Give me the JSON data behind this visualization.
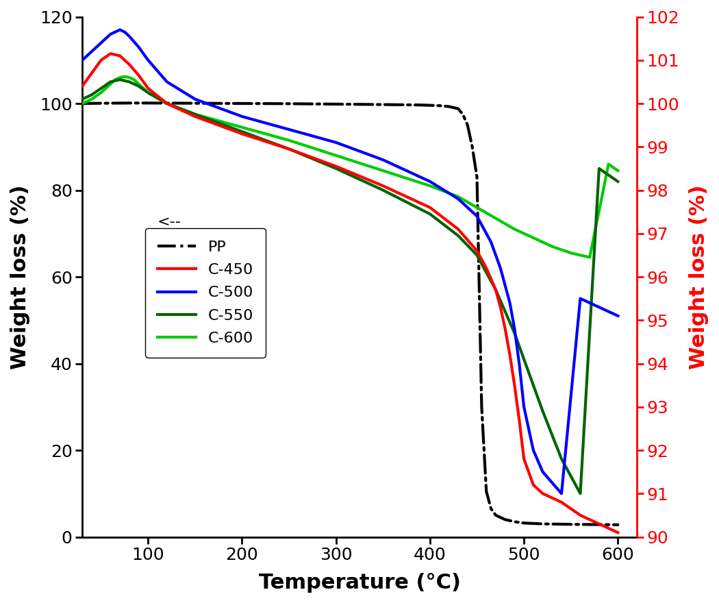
{
  "xlabel": "Temperature (°C)",
  "ylabel_left": "Weight loss (%)",
  "ylabel_right": "Weight loss (%)",
  "xlim": [
    30,
    620
  ],
  "ylim_left": [
    0,
    120
  ],
  "ylim_right": [
    90,
    102
  ],
  "xticks": [
    100,
    200,
    300,
    400,
    500,
    600
  ],
  "yticks_left": [
    0,
    20,
    40,
    60,
    80,
    100,
    120
  ],
  "yticks_right": [
    90,
    91,
    92,
    93,
    94,
    95,
    96,
    97,
    98,
    99,
    100,
    101,
    102
  ],
  "pp_x": [
    30,
    50,
    80,
    100,
    150,
    200,
    250,
    300,
    350,
    390,
    410,
    420,
    430,
    435,
    440,
    445,
    450,
    455,
    460,
    465,
    470,
    480,
    490,
    500,
    520,
    550,
    600
  ],
  "pp_y": [
    100.0,
    100.05,
    100.1,
    100.1,
    100.05,
    100.0,
    99.95,
    99.85,
    99.75,
    99.65,
    99.5,
    99.3,
    98.8,
    97.5,
    95.0,
    90.0,
    83.0,
    30.0,
    10.5,
    6.5,
    5.0,
    4.0,
    3.5,
    3.2,
    3.0,
    2.9,
    2.8
  ],
  "c450_x": [
    30,
    40,
    50,
    60,
    70,
    80,
    90,
    100,
    120,
    150,
    200,
    250,
    300,
    350,
    400,
    430,
    450,
    460,
    470,
    475,
    480,
    485,
    490,
    495,
    500,
    510,
    520,
    540,
    560,
    580,
    600
  ],
  "c450_y": [
    100.4,
    100.7,
    101.0,
    101.15,
    101.1,
    100.9,
    100.65,
    100.35,
    100.0,
    99.7,
    99.3,
    98.95,
    98.55,
    98.1,
    97.6,
    97.1,
    96.6,
    96.2,
    95.7,
    95.3,
    94.8,
    94.2,
    93.5,
    92.7,
    91.8,
    91.2,
    91.0,
    90.8,
    90.5,
    90.3,
    90.1
  ],
  "c500_x": [
    30,
    40,
    50,
    55,
    60,
    65,
    70,
    75,
    80,
    90,
    100,
    120,
    150,
    200,
    250,
    300,
    350,
    400,
    430,
    450,
    460,
    465,
    470,
    475,
    480,
    485,
    490,
    495,
    500,
    510,
    520,
    540,
    560,
    580,
    600
  ],
  "c500_y": [
    101.0,
    101.2,
    101.4,
    101.5,
    101.6,
    101.65,
    101.7,
    101.65,
    101.55,
    101.3,
    101.0,
    100.5,
    100.1,
    99.7,
    99.4,
    99.1,
    98.7,
    98.2,
    97.8,
    97.4,
    97.0,
    96.8,
    96.5,
    96.2,
    95.8,
    95.4,
    94.8,
    94.0,
    93.0,
    92.0,
    91.5,
    91.0,
    95.5,
    95.3,
    95.1
  ],
  "c550_x": [
    30,
    40,
    50,
    60,
    70,
    80,
    90,
    100,
    120,
    150,
    200,
    250,
    300,
    350,
    400,
    430,
    450,
    460,
    470,
    480,
    490,
    500,
    510,
    520,
    540,
    560,
    580,
    600
  ],
  "c550_y": [
    100.1,
    100.2,
    100.35,
    100.5,
    100.55,
    100.5,
    100.4,
    100.25,
    100.0,
    99.75,
    99.35,
    98.95,
    98.5,
    98.0,
    97.45,
    96.95,
    96.5,
    96.1,
    95.7,
    95.2,
    94.7,
    94.1,
    93.5,
    92.9,
    91.8,
    91.0,
    98.5,
    98.2
  ],
  "c600_x": [
    30,
    40,
    50,
    60,
    65,
    70,
    75,
    80,
    85,
    90,
    100,
    120,
    150,
    200,
    250,
    300,
    350,
    400,
    430,
    450,
    470,
    490,
    510,
    530,
    550,
    570,
    590,
    600
  ],
  "c600_y": [
    100.0,
    100.1,
    100.25,
    100.45,
    100.55,
    100.6,
    100.62,
    100.6,
    100.55,
    100.45,
    100.25,
    100.0,
    99.75,
    99.45,
    99.15,
    98.8,
    98.45,
    98.1,
    97.85,
    97.6,
    97.35,
    97.1,
    96.9,
    96.7,
    96.55,
    96.45,
    98.6,
    98.45
  ]
}
